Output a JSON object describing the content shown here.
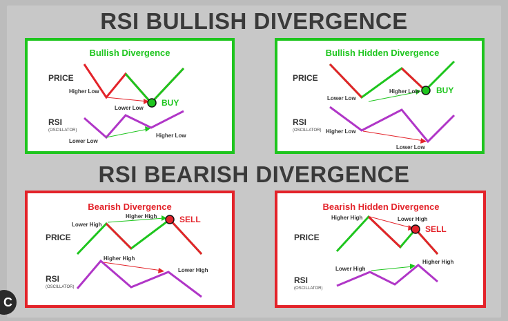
{
  "headings": {
    "bullish": "RSI BULLISH DIVERGENCE",
    "bearish": "RSI BEARISH DIVERGENCE"
  },
  "colors": {
    "green": "#1ec51e",
    "red": "#e3232a",
    "rsi": "#b036c7"
  },
  "panels": {
    "bull": {
      "title": "Bullish Divergence",
      "price": "PRICE",
      "rsi": "RSI",
      "osc": "(OSCILLATOR)",
      "p1": "Higher Low",
      "p2": "Lower Low",
      "r1": "Lower Low",
      "r2": "Higher Low",
      "signal": "BUY"
    },
    "bull_hidden": {
      "title": "Bullish Hidden Divergence",
      "price": "PRICE",
      "rsi": "RSI",
      "osc": "(OSCILLATOR)",
      "p1": "Lower Low",
      "p2": "Higher Low",
      "r1": "Higher Low",
      "r2": "Lower Low",
      "signal": "BUY"
    },
    "bear": {
      "title": "Bearish Divergence",
      "price": "PRICE",
      "rsi": "RSI",
      "osc": "(OSCILLATOR)",
      "p1": "Lower High",
      "p2": "Higher High",
      "r1": "Higher High",
      "r2": "Lower High",
      "signal": "SELL"
    },
    "bear_hidden": {
      "title": "Bearish Hidden Divergence",
      "price": "PRICE",
      "rsi": "RSI",
      "osc": "(OSCILLATOR)",
      "p1": "Higher High",
      "p2": "Lower High",
      "r1": "Lower High",
      "r2": "Higher High",
      "signal": "SELL"
    }
  },
  "badge": "C"
}
